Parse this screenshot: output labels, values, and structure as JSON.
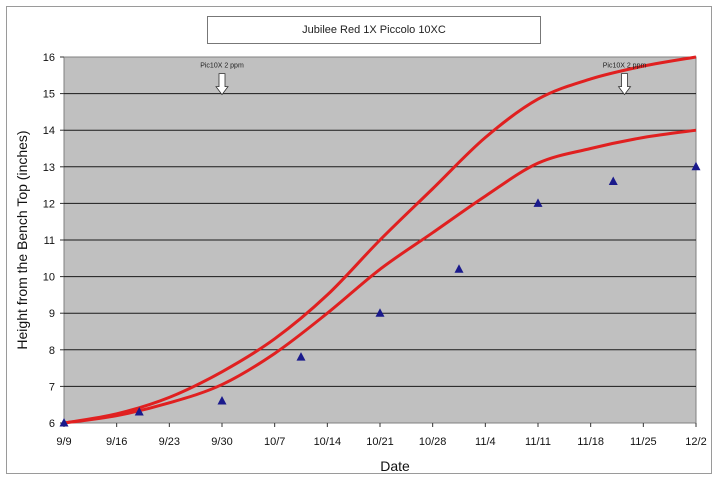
{
  "chart_data": {
    "type": "line",
    "title": "Jubilee Red 1X Piccolo 10XC",
    "xlabel": "Date",
    "ylabel": "Height from the Bench Top (inches)",
    "x_tick_labels": [
      "9/9",
      "9/16",
      "9/23",
      "9/30",
      "10/7",
      "10/14",
      "10/21",
      "10/28",
      "11/4",
      "11/11",
      "11/18",
      "11/25",
      "12/2"
    ],
    "x_tick_days": [
      0,
      7,
      14,
      21,
      28,
      35,
      42,
      49,
      56,
      63,
      70,
      77,
      84
    ],
    "xlim": [
      0,
      84
    ],
    "ylim": [
      6,
      16
    ],
    "y_ticks": [
      6,
      7,
      8,
      9,
      10,
      11,
      12,
      13,
      14,
      15,
      16
    ],
    "grid": true,
    "background_color": "#c0c0c0",
    "series": [
      {
        "kind": "line",
        "color": "#e02020",
        "points": [
          [
            0,
            6.0
          ],
          [
            7,
            6.25
          ],
          [
            14,
            6.7
          ],
          [
            21,
            7.4
          ],
          [
            28,
            8.3
          ],
          [
            35,
            9.5
          ],
          [
            42,
            11.0
          ],
          [
            49,
            12.4
          ],
          [
            56,
            13.8
          ],
          [
            63,
            14.85
          ],
          [
            70,
            15.4
          ],
          [
            77,
            15.75
          ],
          [
            84,
            16.0
          ]
        ]
      },
      {
        "kind": "line",
        "color": "#e02020",
        "points": [
          [
            0,
            6.0
          ],
          [
            7,
            6.2
          ],
          [
            14,
            6.55
          ],
          [
            21,
            7.05
          ],
          [
            28,
            7.9
          ],
          [
            35,
            9.0
          ],
          [
            42,
            10.2
          ],
          [
            49,
            11.2
          ],
          [
            56,
            12.2
          ],
          [
            63,
            13.1
          ],
          [
            70,
            13.5
          ],
          [
            77,
            13.8
          ],
          [
            84,
            14.0
          ]
        ]
      },
      {
        "kind": "scatter",
        "marker": "triangle",
        "color": "#1a1a8c",
        "points": [
          [
            0,
            6.0
          ],
          [
            10,
            6.3
          ],
          [
            21,
            6.6
          ],
          [
            31.5,
            7.8
          ],
          [
            42,
            9.0
          ],
          [
            52.5,
            10.2
          ],
          [
            63,
            12.0
          ],
          [
            73,
            12.6
          ],
          [
            84,
            13.0
          ]
        ]
      }
    ],
    "annotations": [
      {
        "text": "Pic10X  2 ppm",
        "x": 21,
        "y": 15.6
      },
      {
        "text": "Pic10X  2 ppm",
        "x": 74.5,
        "y": 15.6
      }
    ]
  }
}
